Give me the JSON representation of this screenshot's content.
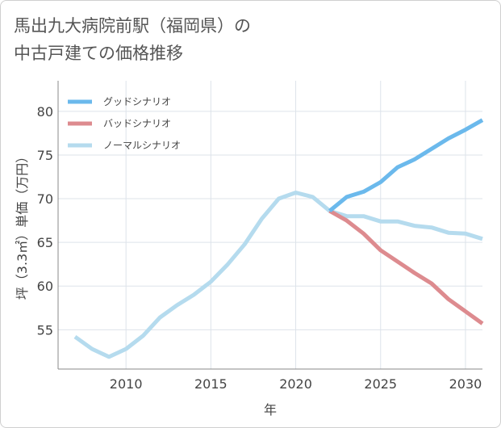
{
  "title": {
    "line1": "馬出九大病院前駅（福岡県）の",
    "line2": "中古戸建ての価格推移"
  },
  "chart_data": {
    "type": "line",
    "xlabel": "年",
    "ylabel": "坪（3.3㎡）単価（万円）",
    "xlim": [
      2006,
      2031
    ],
    "ylim": [
      50.5,
      83.5
    ],
    "x_ticks": [
      2010,
      2015,
      2020,
      2025,
      2030
    ],
    "y_ticks": [
      55,
      60,
      65,
      70,
      75,
      80
    ],
    "grid": true,
    "legend_position": "top-left",
    "series": [
      {
        "name": "グッドシナリオ",
        "color": "#6bb9ec",
        "x": [
          2022,
          2023,
          2024,
          2025,
          2026,
          2027,
          2028,
          2029,
          2030,
          2031
        ],
        "y": [
          68.6,
          70.2,
          70.8,
          71.9,
          73.6,
          74.5,
          75.7,
          76.9,
          77.9,
          79.0
        ]
      },
      {
        "name": "バッドシナリオ",
        "color": "#dd8b8f",
        "x": [
          2022,
          2023,
          2024,
          2025,
          2026,
          2027,
          2028,
          2029,
          2030,
          2031
        ],
        "y": [
          68.6,
          67.5,
          66.0,
          64.1,
          62.8,
          61.5,
          60.3,
          58.5,
          57.1,
          55.7
        ]
      },
      {
        "name": "ノーマルシナリオ",
        "color": "#b5dbee",
        "x": [
          2007,
          2008,
          2009,
          2010,
          2011,
          2012,
          2013,
          2014,
          2015,
          2016,
          2017,
          2018,
          2019,
          2020,
          2021,
          2022,
          2023,
          2024,
          2025,
          2026,
          2027,
          2028,
          2029,
          2030,
          2031
        ],
        "y": [
          54.2,
          52.8,
          51.9,
          52.8,
          54.3,
          56.4,
          57.8,
          59.0,
          60.5,
          62.5,
          64.8,
          67.7,
          70.0,
          70.7,
          70.2,
          68.6,
          68.0,
          68.0,
          67.4,
          67.4,
          66.9,
          66.7,
          66.1,
          66.0,
          65.4
        ]
      }
    ]
  }
}
